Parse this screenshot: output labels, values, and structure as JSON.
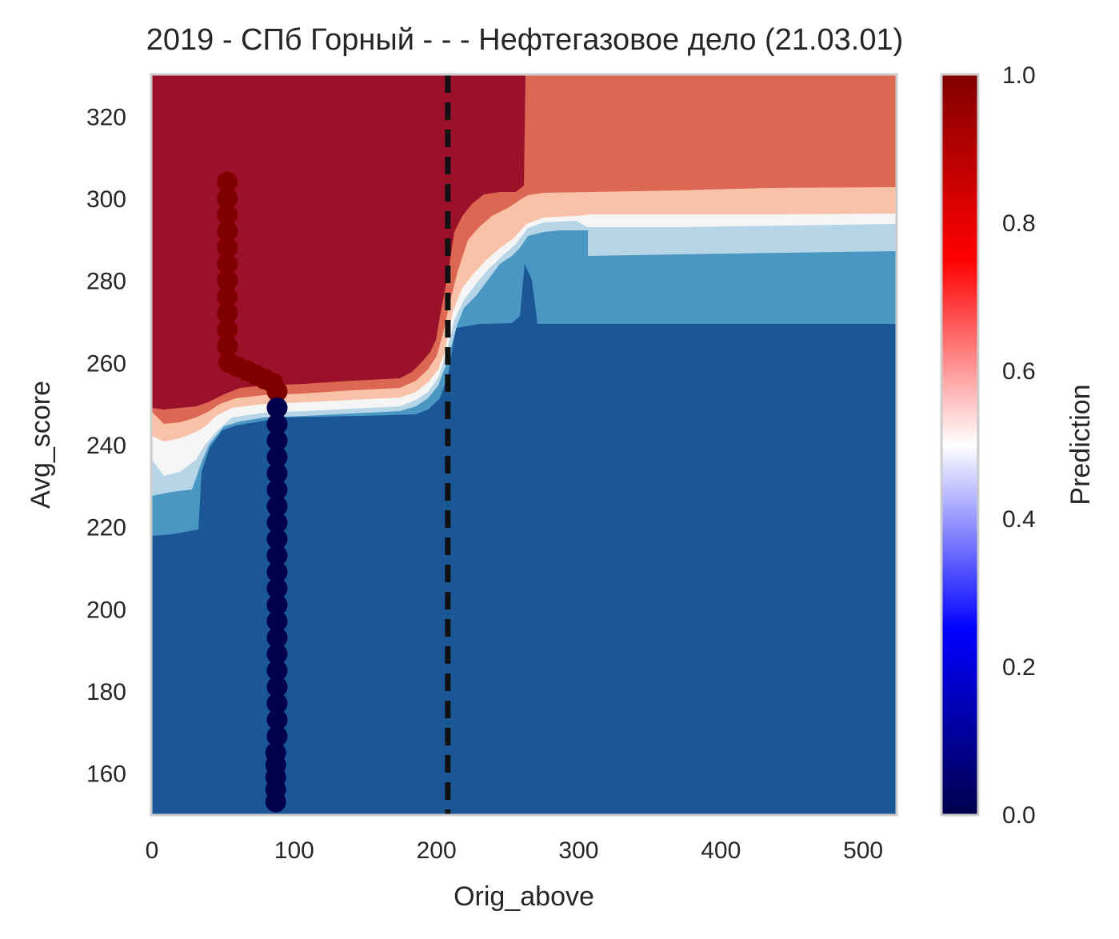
{
  "chart_data": {
    "type": "heatmap",
    "title": "2019 - СПб Горный - - - Нефтегазовое дело (21.03.01)",
    "xlabel": "Orig_above",
    "ylabel": "Avg_score",
    "xlim": [
      0,
      523
    ],
    "ylim": [
      150,
      330
    ],
    "x_ticks": [
      "0",
      "100",
      "200",
      "300",
      "400",
      "500"
    ],
    "y_ticks": [
      "160",
      "180",
      "200",
      "220",
      "240",
      "260",
      "280",
      "300",
      "320"
    ],
    "grid": false,
    "vertical_line": {
      "x": 208,
      "style": "dashed",
      "color": "#111111"
    },
    "colorbar": {
      "label": "Prediction",
      "range": [
        0,
        1
      ],
      "ticks": [
        "0.0",
        "0.2",
        "0.4",
        "0.6",
        "0.8",
        "1.0"
      ],
      "colormap": "seismic"
    },
    "contour_levels": [
      {
        "level": 0.15,
        "color": "#1b5796"
      },
      {
        "level": 0.3,
        "color": "#4b97c4"
      },
      {
        "level": 0.45,
        "color": "#b6d5e7"
      },
      {
        "level": 0.5,
        "color": "#f5f5f5"
      },
      {
        "level": 0.6,
        "color": "#f8c1a8"
      },
      {
        "level": 0.75,
        "color": "#dc6854"
      },
      {
        "level": 0.9,
        "color": "#9b1129"
      }
    ],
    "series": [
      {
        "type": "scatter",
        "color_by": "prediction",
        "points": [
          {
            "x": 53,
            "y": 304,
            "v": 1.0
          },
          {
            "x": 53,
            "y": 300,
            "v": 1.0
          },
          {
            "x": 53,
            "y": 296,
            "v": 1.0
          },
          {
            "x": 53,
            "y": 292,
            "v": 1.0
          },
          {
            "x": 53,
            "y": 288,
            "v": 1.0
          },
          {
            "x": 53,
            "y": 284,
            "v": 1.0
          },
          {
            "x": 53,
            "y": 280,
            "v": 1.0
          },
          {
            "x": 53,
            "y": 276,
            "v": 1.0
          },
          {
            "x": 53,
            "y": 272,
            "v": 1.0
          },
          {
            "x": 53,
            "y": 268,
            "v": 1.0
          },
          {
            "x": 53,
            "y": 264,
            "v": 1.0
          },
          {
            "x": 54,
            "y": 260,
            "v": 1.0
          },
          {
            "x": 60,
            "y": 259,
            "v": 1.0
          },
          {
            "x": 67,
            "y": 258,
            "v": 1.0
          },
          {
            "x": 73,
            "y": 257,
            "v": 1.0
          },
          {
            "x": 79,
            "y": 256,
            "v": 1.0
          },
          {
            "x": 85,
            "y": 255,
            "v": 1.0
          },
          {
            "x": 88,
            "y": 253,
            "v": 1.0
          },
          {
            "x": 88,
            "y": 249,
            "v": 0.0
          },
          {
            "x": 88,
            "y": 245,
            "v": 0.0
          },
          {
            "x": 88,
            "y": 241,
            "v": 0.0
          },
          {
            "x": 88,
            "y": 237,
            "v": 0.0
          },
          {
            "x": 88,
            "y": 233,
            "v": 0.0
          },
          {
            "x": 88,
            "y": 229,
            "v": 0.0
          },
          {
            "x": 88,
            "y": 225,
            "v": 0.0
          },
          {
            "x": 88,
            "y": 221,
            "v": 0.0
          },
          {
            "x": 88,
            "y": 217,
            "v": 0.0
          },
          {
            "x": 88,
            "y": 213,
            "v": 0.0
          },
          {
            "x": 88,
            "y": 209,
            "v": 0.0
          },
          {
            "x": 88,
            "y": 205,
            "v": 0.0
          },
          {
            "x": 88,
            "y": 201,
            "v": 0.0
          },
          {
            "x": 88,
            "y": 197,
            "v": 0.0
          },
          {
            "x": 88,
            "y": 193,
            "v": 0.0
          },
          {
            "x": 88,
            "y": 189,
            "v": 0.0
          },
          {
            "x": 88,
            "y": 185,
            "v": 0.0
          },
          {
            "x": 88,
            "y": 181,
            "v": 0.0
          },
          {
            "x": 88,
            "y": 177,
            "v": 0.0
          },
          {
            "x": 88,
            "y": 173,
            "v": 0.0
          },
          {
            "x": 88,
            "y": 169,
            "v": 0.0
          },
          {
            "x": 87,
            "y": 165,
            "v": 0.0
          },
          {
            "x": 87,
            "y": 162,
            "v": 0.0
          },
          {
            "x": 87,
            "y": 159,
            "v": 0.0
          },
          {
            "x": 87,
            "y": 156,
            "v": 0.0
          },
          {
            "x": 87,
            "y": 153,
            "v": 0.0
          }
        ]
      }
    ]
  }
}
